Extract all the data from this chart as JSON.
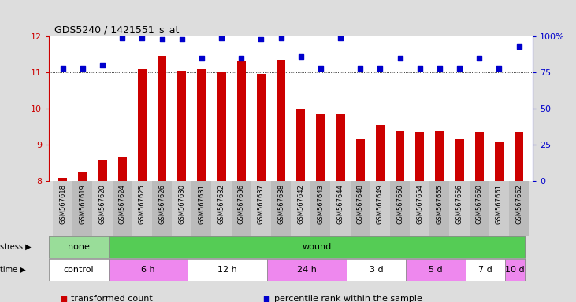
{
  "title": "GDS5240 / 1421551_s_at",
  "samples": [
    "GSM567618",
    "GSM567619",
    "GSM567620",
    "GSM567624",
    "GSM567625",
    "GSM567626",
    "GSM567630",
    "GSM567631",
    "GSM567632",
    "GSM567636",
    "GSM567637",
    "GSM567638",
    "GSM567642",
    "GSM567643",
    "GSM567644",
    "GSM567648",
    "GSM567649",
    "GSM567650",
    "GSM567654",
    "GSM567655",
    "GSM567656",
    "GSM567660",
    "GSM567661",
    "GSM567662"
  ],
  "bar_values": [
    8.1,
    8.25,
    8.6,
    8.65,
    11.1,
    11.45,
    11.05,
    11.1,
    11.0,
    11.3,
    10.95,
    11.35,
    10.0,
    9.85,
    9.85,
    9.15,
    9.55,
    9.4,
    9.35,
    9.4,
    9.15,
    9.35,
    9.1,
    9.35
  ],
  "dot_values": [
    78,
    78,
    80,
    99,
    99,
    98,
    98,
    85,
    99,
    85,
    98,
    99,
    86,
    78,
    99,
    78,
    78,
    85,
    78,
    78,
    78,
    85,
    78,
    93
  ],
  "bar_color": "#cc0000",
  "dot_color": "#0000cc",
  "ylim_left": [
    8,
    12
  ],
  "ylim_right": [
    0,
    100
  ],
  "yticks_left": [
    8,
    9,
    10,
    11,
    12
  ],
  "yticks_right": [
    0,
    25,
    50,
    75,
    100
  ],
  "ytick_labels_right": [
    "0",
    "25",
    "50",
    "75",
    "100%"
  ],
  "stress_groups": [
    {
      "label": "none",
      "start": 0,
      "end": 3,
      "color": "#99dd99"
    },
    {
      "label": "wound",
      "start": 3,
      "end": 24,
      "color": "#55cc55"
    }
  ],
  "time_groups": [
    {
      "label": "control",
      "start": 0,
      "end": 3,
      "color": "#ffffff"
    },
    {
      "label": "6 h",
      "start": 3,
      "end": 7,
      "color": "#ee88ee"
    },
    {
      "label": "12 h",
      "start": 7,
      "end": 11,
      "color": "#ffffff"
    },
    {
      "label": "24 h",
      "start": 11,
      "end": 15,
      "color": "#ee88ee"
    },
    {
      "label": "3 d",
      "start": 15,
      "end": 18,
      "color": "#ffffff"
    },
    {
      "label": "5 d",
      "start": 18,
      "end": 21,
      "color": "#ee88ee"
    },
    {
      "label": "7 d",
      "start": 21,
      "end": 23,
      "color": "#ffffff"
    },
    {
      "label": "10 d",
      "start": 23,
      "end": 24,
      "color": "#ee88ee"
    }
  ],
  "legend_items": [
    {
      "label": "transformed count",
      "color": "#cc0000"
    },
    {
      "label": "percentile rank within the sample",
      "color": "#0000cc"
    }
  ],
  "bg_color": "#dddddd",
  "plot_bg": "#ffffff",
  "tick_bg": "#cccccc"
}
